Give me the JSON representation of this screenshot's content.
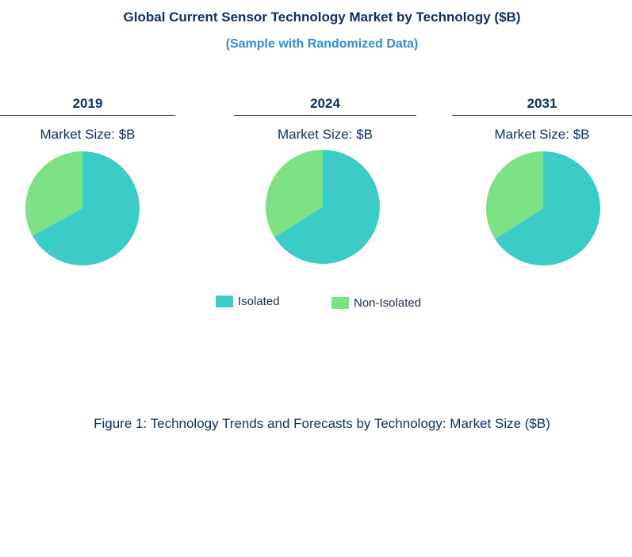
{
  "chart_data": {
    "type": "pie",
    "title": "Global Current Sensor Technology Market by Technology ($B)",
    "subtitle": "(Sample with Randomized Data)",
    "caption": "Figure 1: Technology Trends and Forecasts by Technology: Market Size ($B)",
    "legend_placement": "bottom",
    "legend": [
      {
        "name": "Isolated",
        "color": "#3cccc8"
      },
      {
        "name": "Non-Isolated",
        "color": "#7ce283"
      }
    ],
    "pies": [
      {
        "year": "2019",
        "label": "Market Size: $B",
        "slices": [
          {
            "name": "Isolated",
            "value": 67
          },
          {
            "name": "Non-Isolated",
            "value": 33
          }
        ]
      },
      {
        "year": "2024",
        "label": "Market Size: $B",
        "slices": [
          {
            "name": "Isolated",
            "value": 66
          },
          {
            "name": "Non-Isolated",
            "value": 34
          }
        ]
      },
      {
        "year": "2031",
        "label": "Market Size: $B",
        "slices": [
          {
            "name": "Isolated",
            "value": 66
          },
          {
            "name": "Non-Isolated",
            "value": 34
          }
        ]
      }
    ]
  }
}
